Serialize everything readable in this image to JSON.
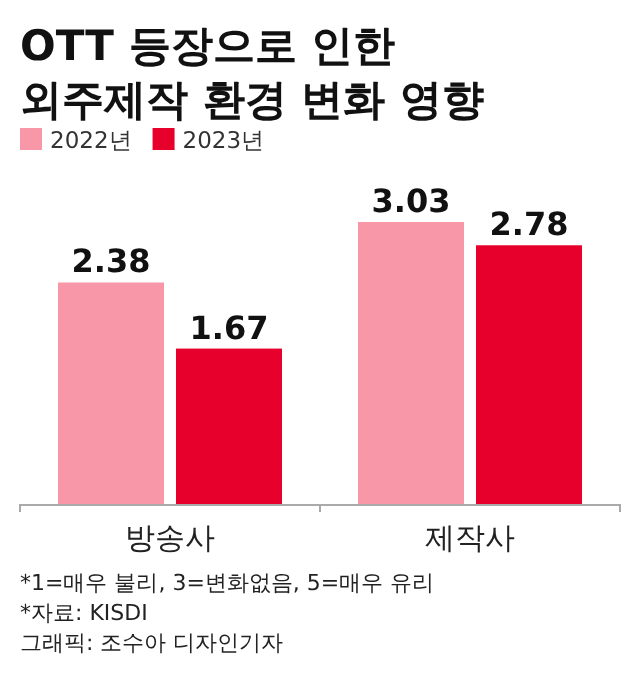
{
  "chart_data": {
    "type": "bar",
    "title": "OTT 등장으로 인한 외주제작 환경 변화 영향",
    "categories": [
      "방송사",
      "제작사"
    ],
    "series": [
      {
        "name": "2022년",
        "color": "#f797a8",
        "values": [
          2.38,
          3.03
        ]
      },
      {
        "name": "2023년",
        "color": "#e8002d",
        "values": [
          1.67,
          2.78
        ]
      }
    ],
    "tick_labels": "x",
    "data_labels": true,
    "legend": "top left",
    "annotations": [
      "*1=매우 불리, 3=변화없음, 5=매우 유리",
      "*자료: KISDI",
      "그래픽: 조수아 디자인기자"
    ]
  }
}
